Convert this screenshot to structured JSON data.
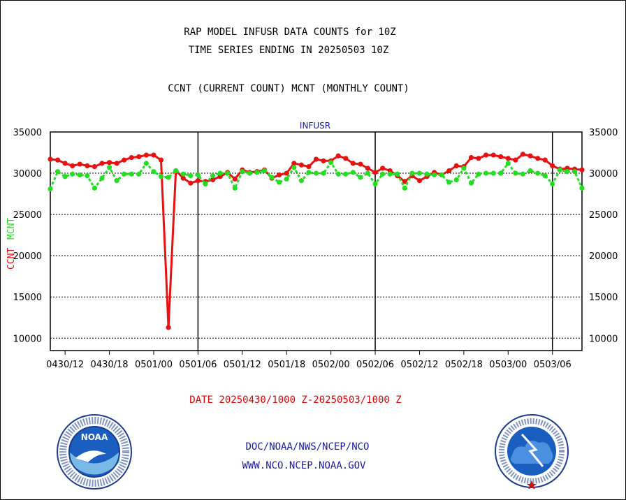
{
  "header": {
    "title_line1": "RAP MODEL INFUSR DATA COUNTS for 10Z",
    "title_line2": "TIME SERIES ENDING IN 20250503 10Z",
    "subtitle": "CCNT (CURRENT COUNT) MCNT (MONTHLY COUNT)"
  },
  "footer": {
    "date_range": "DATE 20250430/1000 Z-20250503/1000 Z",
    "credit_line1": "DOC/NOAA/NWS/NCEP/NCO",
    "credit_line2": "WWW.NCO.NCEP.NOAA.GOV"
  },
  "logos": {
    "left": {
      "icon": "noaa-logo-icon",
      "text": "NOAA",
      "ring_text": "NATIONAL OCEANIC AND ATMOSPHERIC ADMINISTRATION · U.S. DEPARTMENT OF COMMERCE"
    },
    "right": {
      "icon": "nws-logo-icon",
      "ring_text": "NATIONAL WEATHER SERVICE"
    }
  },
  "colors": {
    "ccnt": "#e81010",
    "mcnt": "#22dd22",
    "series_label": "#1a1aa6",
    "date_text": "#e00000"
  },
  "chart_data": {
    "type": "line",
    "title": "INFUSR",
    "ylabel_ccnt": "CCNT",
    "ylabel_mcnt": "MCNT",
    "ylim": [
      8500,
      35000
    ],
    "yticks": [
      10000,
      15000,
      20000,
      25000,
      30000,
      35000
    ],
    "ytick_labels": [
      "10000",
      "15000",
      "20000",
      "25000",
      "30000",
      "35000"
    ],
    "x_unit": "hours since 0430/10",
    "xlim": [
      0,
      72
    ],
    "xticks": [
      2,
      8,
      14,
      20,
      26,
      32,
      38,
      44,
      50,
      56,
      62,
      68
    ],
    "xtick_labels": [
      "0430/12",
      "0430/18",
      "0501/00",
      "0501/06",
      "0501/12",
      "0501/18",
      "0502/00",
      "0502/06",
      "0502/12",
      "0502/18",
      "0503/00",
      "0503/06"
    ],
    "day_boundaries": [
      20,
      44,
      68
    ],
    "grid": true,
    "series": [
      {
        "name": "CCNT",
        "color": "#e81010",
        "x": [
          0,
          1,
          2,
          3,
          4,
          5,
          6,
          7,
          8,
          9,
          10,
          11,
          12,
          13,
          14,
          15,
          16,
          17,
          18,
          19,
          20,
          21,
          22,
          23,
          24,
          25,
          26,
          27,
          28,
          29,
          30,
          31,
          32,
          33,
          34,
          35,
          36,
          37,
          38,
          39,
          40,
          41,
          42,
          43,
          44,
          45,
          46,
          47,
          48,
          49,
          50,
          51,
          52,
          53,
          54,
          55,
          56,
          57,
          58,
          59,
          60,
          61,
          62,
          63,
          64,
          65,
          66,
          67,
          68,
          69,
          70,
          71,
          72
        ],
        "values": [
          31700,
          31600,
          31200,
          30900,
          31100,
          30900,
          30800,
          31200,
          31300,
          31200,
          31600,
          31900,
          32000,
          32200,
          32200,
          31600,
          11300,
          30300,
          29400,
          28800,
          29100,
          29000,
          29200,
          29600,
          30100,
          29300,
          30400,
          30100,
          30200,
          30400,
          29400,
          29800,
          30000,
          31200,
          31000,
          30800,
          31700,
          31500,
          31500,
          32100,
          31800,
          31200,
          31100,
          30600,
          30100,
          30600,
          30300,
          29700,
          29000,
          29700,
          29100,
          29600,
          30100,
          29800,
          30300,
          30900,
          30800,
          31900,
          31800,
          32200,
          32200,
          32000,
          31800,
          31600,
          32300,
          32100,
          31800,
          31600,
          30900,
          30500,
          30600,
          30500,
          30400
        ],
        "values_tail_note": ""
      },
      {
        "name": "MCNT",
        "color": "#22dd22",
        "x": [
          0,
          1,
          2,
          3,
          4,
          5,
          6,
          7,
          8,
          9,
          10,
          11,
          12,
          13,
          14,
          15,
          16,
          17,
          18,
          19,
          20,
          21,
          22,
          23,
          24,
          25,
          26,
          27,
          28,
          29,
          30,
          31,
          32,
          33,
          34,
          35,
          36,
          37,
          38,
          39,
          40,
          41,
          42,
          43,
          44,
          45,
          46,
          47,
          48,
          49,
          50,
          51,
          52,
          53,
          54,
          55,
          56,
          57,
          58,
          59,
          60,
          61,
          62,
          63,
          64,
          65,
          66,
          67,
          68,
          69,
          70,
          71,
          72
        ],
        "values": [
          28100,
          30200,
          29600,
          29900,
          29800,
          29700,
          28200,
          29400,
          30700,
          29100,
          29900,
          29900,
          29900,
          31200,
          30200,
          29600,
          29500,
          30300,
          29900,
          29700,
          29800,
          28700,
          29700,
          30000,
          30000,
          28200,
          30200,
          30000,
          30100,
          30300,
          29500,
          28900,
          29300,
          30700,
          29100,
          30100,
          30000,
          30000,
          31300,
          29900,
          29900,
          30100,
          29500,
          30000,
          28700,
          29900,
          29900,
          29900,
          28200,
          30000,
          30000,
          29900,
          29800,
          29800,
          28900,
          29200,
          30600,
          28800,
          29900,
          30000,
          30000,
          30000,
          31200,
          30000,
          29900,
          30300,
          30000,
          29700,
          28700,
          30400,
          30200,
          30200,
          28200
        ]
      }
    ]
  }
}
